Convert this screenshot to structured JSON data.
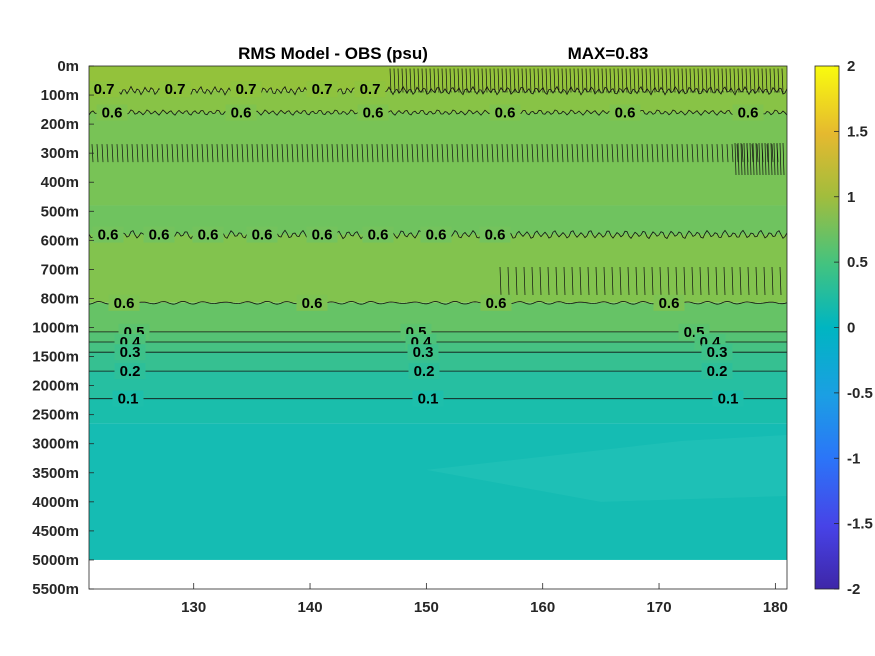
{
  "chart_data": {
    "type": "contour",
    "title": "RMS Model - OBS (psu)",
    "max_label": "MAX=0.83",
    "x_ticks": [
      130,
      140,
      150,
      160,
      170,
      180
    ],
    "x_range": [
      121,
      181
    ],
    "y_ticks": [
      "0m",
      "100m",
      "200m",
      "300m",
      "400m",
      "500m",
      "600m",
      "700m",
      "800m",
      "1000m",
      "1500m",
      "2000m",
      "2500m",
      "3000m",
      "3500m",
      "4000m",
      "4500m",
      "5000m",
      "5500m"
    ],
    "y_bottom_of_data": "5000m",
    "colorbar": {
      "ticks": [
        "2",
        "1.5",
        "1",
        "0.5",
        "0",
        "-0.5",
        "-1",
        "-1.5",
        "-2"
      ],
      "range": [
        -2,
        2
      ]
    },
    "levels": [
      {
        "depth_index": 0.8,
        "level": 0.7,
        "color": "#8ec33e",
        "labels": [
          "0.7",
          "0.7",
          "0.7",
          "0.7",
          "0.7"
        ]
      },
      {
        "depth_index": 1.6,
        "level": 0.6,
        "color": "#7fc34f",
        "labels": [
          "0.6",
          "0.6",
          "0.6",
          "0.6",
          "0.6",
          "0.6"
        ]
      },
      {
        "depth_index": 5.8,
        "level": 0.6,
        "color": "#74c35d",
        "labels": [
          "0.6",
          "0.6",
          "0.6",
          "0.6",
          "0.6",
          "0.6",
          "0.6",
          "0.6"
        ]
      },
      {
        "depth_index": 8.15,
        "level": 0.6,
        "color": "#7dc353",
        "labels": [
          "0.6",
          "0.6",
          "0.6",
          "0.6"
        ]
      },
      {
        "depth_index": 9.15,
        "level": 0.5,
        "color": "#5cc36e",
        "labels": [
          "0.5",
          "0.5",
          "0.5"
        ]
      },
      {
        "depth_index": 9.5,
        "level": 0.4,
        "color": "#4dc27a",
        "labels": [
          "0.4",
          "0.4",
          "0.4"
        ]
      },
      {
        "depth_index": 9.85,
        "level": 0.3,
        "color": "#3dc189",
        "labels": [
          "0.3",
          "0.3",
          "0.3"
        ]
      },
      {
        "depth_index": 10.5,
        "level": 0.2,
        "color": "#2dbf99",
        "labels": [
          "0.2",
          "0.2",
          "0.2"
        ]
      },
      {
        "depth_index": 11.45,
        "level": 0.1,
        "color": "#1dbfab",
        "labels": [
          "0.1",
          "0.1",
          "0.1"
        ]
      }
    ],
    "deep_fill_color": "#15bcb3"
  }
}
